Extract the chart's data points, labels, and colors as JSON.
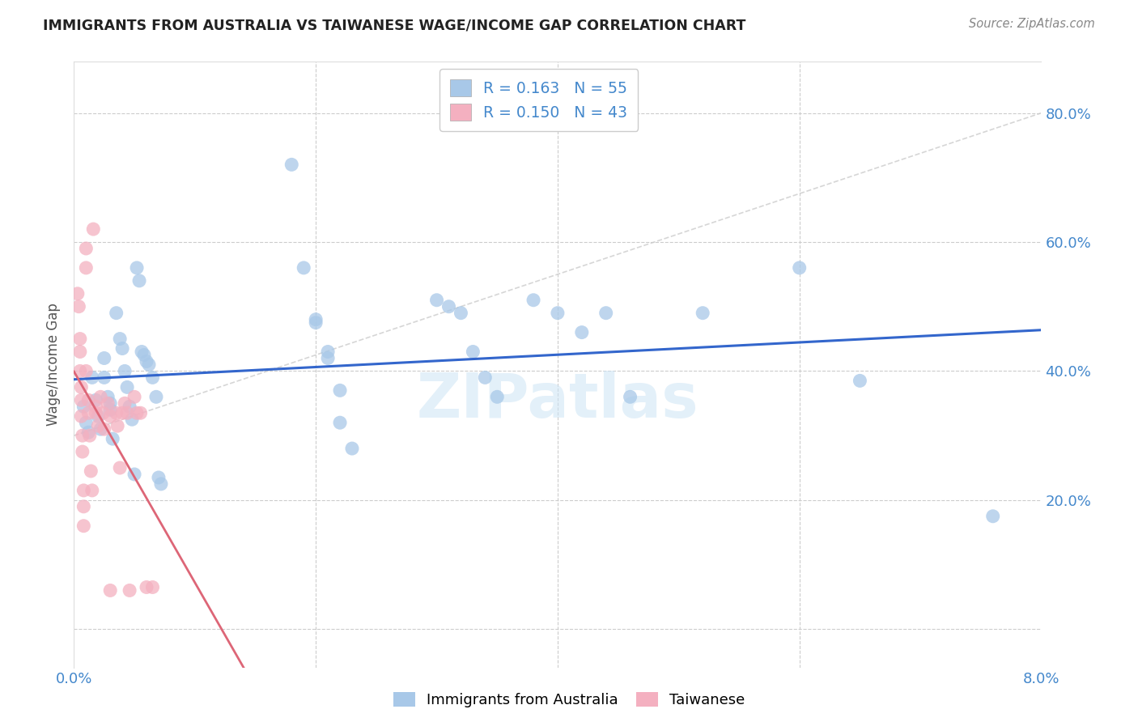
{
  "title": "IMMIGRANTS FROM AUSTRALIA VS TAIWANESE WAGE/INCOME GAP CORRELATION CHART",
  "source": "Source: ZipAtlas.com",
  "ylabel": "Wage/Income Gap",
  "yticks": [
    0.0,
    0.2,
    0.4,
    0.6,
    0.8
  ],
  "ytick_labels": [
    "",
    "20.0%",
    "40.0%",
    "60.0%",
    "80.0%"
  ],
  "xmin": 0.0,
  "xmax": 0.08,
  "ymin": -0.06,
  "ymax": 0.88,
  "legend1_label": "Immigrants from Australia",
  "legend2_label": "Taiwanese",
  "R1": 0.163,
  "N1": 55,
  "R2": 0.15,
  "N2": 43,
  "color1": "#a8c8e8",
  "color2": "#f4b0c0",
  "trendline1_color": "#3366cc",
  "trendline2_color": "#dd6677",
  "grid_color": "#cccccc",
  "axis_color": "#4488cc",
  "watermark": "ZIPatlas",
  "blue_dots": [
    [
      0.0008,
      0.345
    ],
    [
      0.001,
      0.32
    ],
    [
      0.0012,
      0.305
    ],
    [
      0.0015,
      0.39
    ],
    [
      0.0018,
      0.355
    ],
    [
      0.002,
      0.33
    ],
    [
      0.0022,
      0.31
    ],
    [
      0.0025,
      0.42
    ],
    [
      0.0025,
      0.39
    ],
    [
      0.0028,
      0.36
    ],
    [
      0.003,
      0.35
    ],
    [
      0.003,
      0.34
    ],
    [
      0.0032,
      0.295
    ],
    [
      0.0035,
      0.49
    ],
    [
      0.0038,
      0.45
    ],
    [
      0.004,
      0.435
    ],
    [
      0.0042,
      0.4
    ],
    [
      0.0044,
      0.375
    ],
    [
      0.0046,
      0.345
    ],
    [
      0.0048,
      0.325
    ],
    [
      0.005,
      0.24
    ],
    [
      0.0052,
      0.56
    ],
    [
      0.0054,
      0.54
    ],
    [
      0.0056,
      0.43
    ],
    [
      0.0058,
      0.425
    ],
    [
      0.006,
      0.415
    ],
    [
      0.0062,
      0.41
    ],
    [
      0.0065,
      0.39
    ],
    [
      0.0068,
      0.36
    ],
    [
      0.007,
      0.235
    ],
    [
      0.0072,
      0.225
    ],
    [
      0.018,
      0.72
    ],
    [
      0.019,
      0.56
    ],
    [
      0.02,
      0.48
    ],
    [
      0.02,
      0.475
    ],
    [
      0.021,
      0.43
    ],
    [
      0.021,
      0.42
    ],
    [
      0.022,
      0.37
    ],
    [
      0.022,
      0.32
    ],
    [
      0.023,
      0.28
    ],
    [
      0.03,
      0.51
    ],
    [
      0.031,
      0.5
    ],
    [
      0.032,
      0.49
    ],
    [
      0.033,
      0.43
    ],
    [
      0.034,
      0.39
    ],
    [
      0.035,
      0.36
    ],
    [
      0.038,
      0.51
    ],
    [
      0.04,
      0.49
    ],
    [
      0.042,
      0.46
    ],
    [
      0.044,
      0.49
    ],
    [
      0.046,
      0.36
    ],
    [
      0.052,
      0.49
    ],
    [
      0.06,
      0.56
    ],
    [
      0.065,
      0.385
    ],
    [
      0.076,
      0.175
    ]
  ],
  "pink_dots": [
    [
      0.0003,
      0.52
    ],
    [
      0.0004,
      0.5
    ],
    [
      0.0005,
      0.45
    ],
    [
      0.0005,
      0.43
    ],
    [
      0.0005,
      0.4
    ],
    [
      0.0006,
      0.375
    ],
    [
      0.0006,
      0.355
    ],
    [
      0.0006,
      0.33
    ],
    [
      0.0007,
      0.3
    ],
    [
      0.0007,
      0.275
    ],
    [
      0.0008,
      0.215
    ],
    [
      0.0008,
      0.19
    ],
    [
      0.0008,
      0.16
    ],
    [
      0.001,
      0.59
    ],
    [
      0.001,
      0.56
    ],
    [
      0.001,
      0.4
    ],
    [
      0.0012,
      0.355
    ],
    [
      0.0012,
      0.335
    ],
    [
      0.0013,
      0.3
    ],
    [
      0.0014,
      0.245
    ],
    [
      0.0015,
      0.215
    ],
    [
      0.0016,
      0.62
    ],
    [
      0.0018,
      0.345
    ],
    [
      0.0018,
      0.335
    ],
    [
      0.002,
      0.315
    ],
    [
      0.0022,
      0.36
    ],
    [
      0.0024,
      0.335
    ],
    [
      0.0025,
      0.31
    ],
    [
      0.0028,
      0.35
    ],
    [
      0.003,
      0.33
    ],
    [
      0.003,
      0.06
    ],
    [
      0.0035,
      0.335
    ],
    [
      0.0036,
      0.315
    ],
    [
      0.0038,
      0.25
    ],
    [
      0.004,
      0.335
    ],
    [
      0.0042,
      0.35
    ],
    [
      0.0044,
      0.335
    ],
    [
      0.0046,
      0.06
    ],
    [
      0.005,
      0.36
    ],
    [
      0.0052,
      0.335
    ],
    [
      0.0055,
      0.335
    ],
    [
      0.006,
      0.065
    ],
    [
      0.0065,
      0.065
    ]
  ]
}
